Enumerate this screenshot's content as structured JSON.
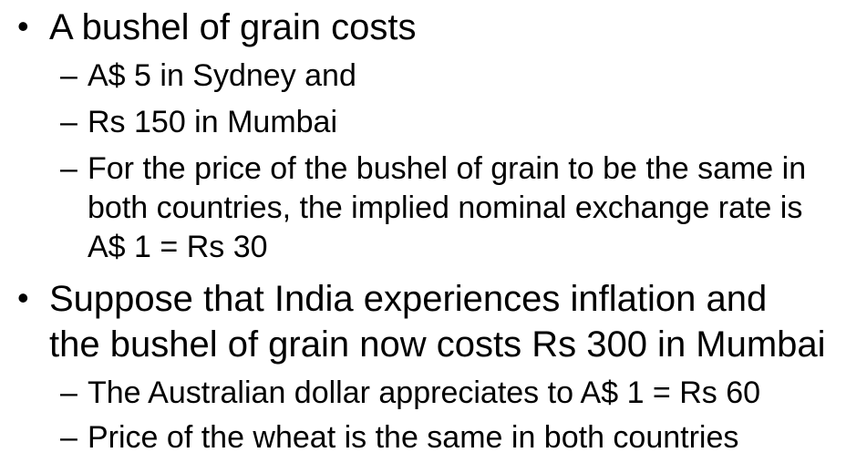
{
  "bullets": [
    {
      "marker": "•",
      "lines": [
        "A bushel of grain costs"
      ],
      "sub": [
        {
          "marker": "–",
          "lines": [
            "A$ 5 in Sydney and"
          ]
        },
        {
          "marker": "–",
          "lines": [
            "Rs 150 in Mumbai"
          ]
        },
        {
          "marker": "–",
          "lines": [
            "For the price of the bushel of grain to be the same in",
            "both countries, the implied nominal exchange rate is",
            "A$ 1 = Rs 30"
          ]
        }
      ]
    },
    {
      "marker": "•",
      "lines": [
        "Suppose that India experiences inflation and",
        "the bushel of grain now costs Rs 300 in Mumbai"
      ],
      "sub": [
        {
          "marker": "–",
          "lines": [
            "The Australian dollar appreciates to A$ 1 = Rs 60"
          ]
        },
        {
          "marker": "–",
          "lines": [
            "Price of the wheat is the same in both countries"
          ]
        }
      ]
    }
  ]
}
